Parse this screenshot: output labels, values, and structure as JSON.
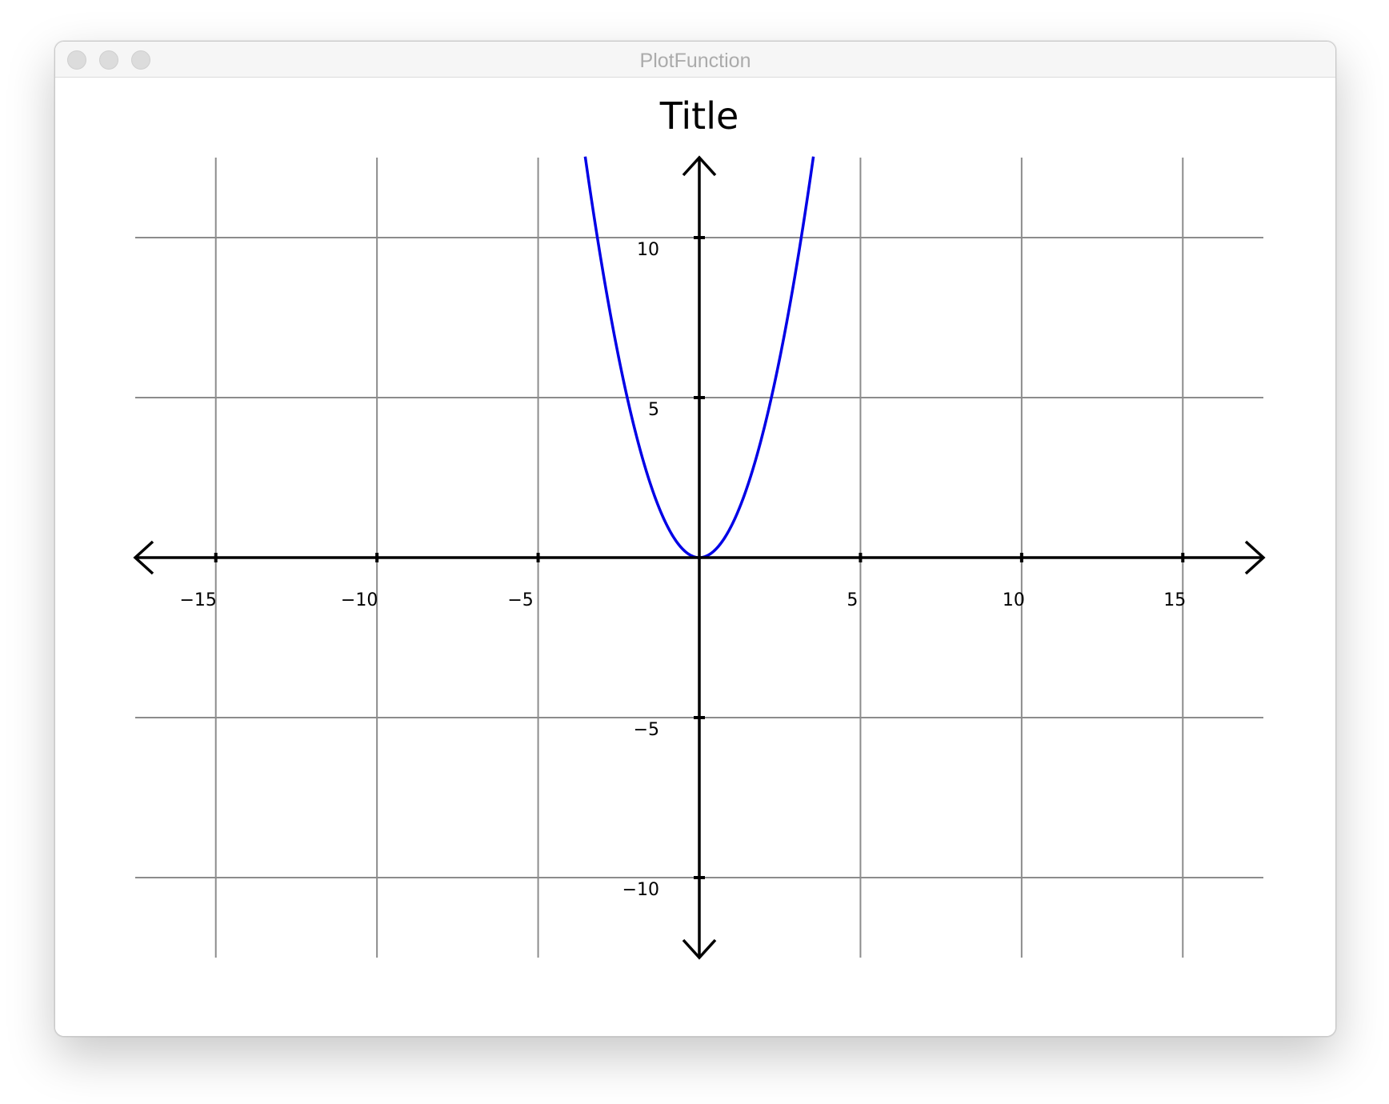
{
  "window": {
    "title": "PlotFunction"
  },
  "chart_data": {
    "type": "line",
    "title": "Title",
    "xlabel": "",
    "ylabel": "",
    "xlim": [
      -17.5,
      17.5
    ],
    "ylim": [
      -12.5,
      12.5
    ],
    "grid": true,
    "axes_at_origin": true,
    "axis_arrows": true,
    "x_ticks": [
      -15,
      -10,
      -5,
      5,
      10,
      15
    ],
    "y_ticks": [
      -10,
      -5,
      5,
      10
    ],
    "x_tick_labels": [
      "−15",
      "−10",
      "−5",
      "5",
      "10",
      "15"
    ],
    "y_tick_labels": [
      "−10",
      "−5",
      "5",
      "10"
    ],
    "series": [
      {
        "function": "y = x^2",
        "color": "#0000e6",
        "x": [
          -3.54,
          -3.0,
          -2.5,
          -2.0,
          -1.5,
          -1.0,
          -0.5,
          0.0,
          0.5,
          1.0,
          1.5,
          2.0,
          2.5,
          3.0,
          3.54
        ],
        "y": [
          12.5,
          9.0,
          6.25,
          4.0,
          2.25,
          1.0,
          0.25,
          0.0,
          0.25,
          1.0,
          2.25,
          4.0,
          6.25,
          9.0,
          12.5
        ]
      }
    ]
  },
  "colors": {
    "grid": "#8c8c8c",
    "axis": "#000000",
    "curve": "#0000e6"
  }
}
